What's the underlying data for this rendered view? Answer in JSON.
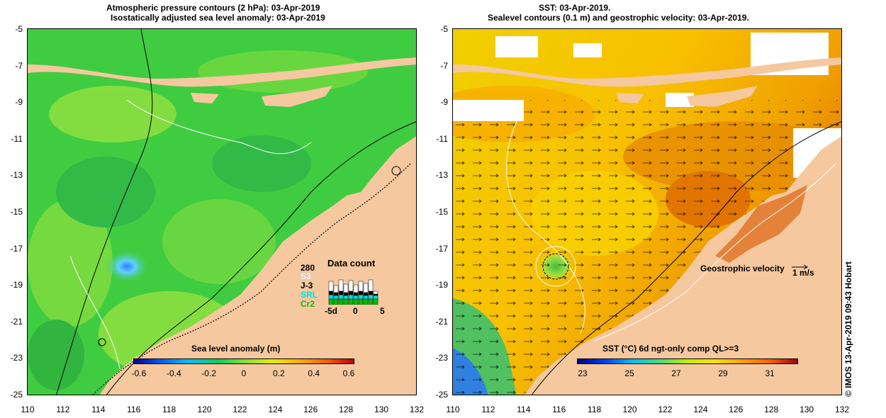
{
  "left_panel": {
    "title_line1": "Atmospheric pressure contours (2 hPa): 03-Apr-2019",
    "title_line2": "Isostatically adjusted sea level anomaly: 03-Apr-2019",
    "colorbar": {
      "title": "Sea level anomaly (m)",
      "ticks": [
        "-0.6",
        "-0.4",
        "-0.2",
        "0",
        "0.2",
        "0.4",
        "0.6"
      ],
      "colors": [
        "#000090",
        "#0060ff",
        "#00c0ff",
        "#00d060",
        "#80e040",
        "#e0f000",
        "#ffb000",
        "#ff6000",
        "#c00000"
      ]
    },
    "inset": {
      "title": "Data count",
      "count": "280",
      "labels": [
        "S3",
        "J-3",
        "SRL",
        "Cr2"
      ],
      "label_colors": [
        "#ffffff",
        "#000000",
        "#00e0e0",
        "#00c000"
      ],
      "xticks": [
        "-5d",
        "0",
        "5"
      ]
    }
  },
  "right_panel": {
    "title_line1": "SST: 03-Apr-2019.",
    "title_line2": "Sealevel contours (0.1 m) and geostrophic velocity: 03-Apr-2019.",
    "velocity_label": "Geostrophic velocity",
    "velocity_scale": "1 m/s",
    "colorbar": {
      "title": "SST (°C) 6d ngt-only comp QL>=3",
      "ticks": [
        "23",
        "25",
        "27",
        "29",
        "31"
      ],
      "colors": [
        "#000080",
        "#0040ff",
        "#00c0ff",
        "#40e080",
        "#c0f000",
        "#ffe000",
        "#ffa000",
        "#ff6000",
        "#a00000"
      ]
    }
  },
  "axes": {
    "y_ticks": [
      "-5",
      "-7",
      "-9",
      "-11",
      "-13",
      "-15",
      "-17",
      "-19",
      "-21",
      "-23",
      "-25"
    ],
    "x_ticks": [
      "110",
      "112",
      "114",
      "116",
      "118",
      "120",
      "122",
      "124",
      "126",
      "128",
      "130",
      "132"
    ]
  },
  "credit": "© IMOS 13-Apr-2019 09:43 Hobart",
  "colors": {
    "land": "#f5c8a0",
    "sea_green": "#3cc83c",
    "sst_orange": "#f0a000"
  }
}
